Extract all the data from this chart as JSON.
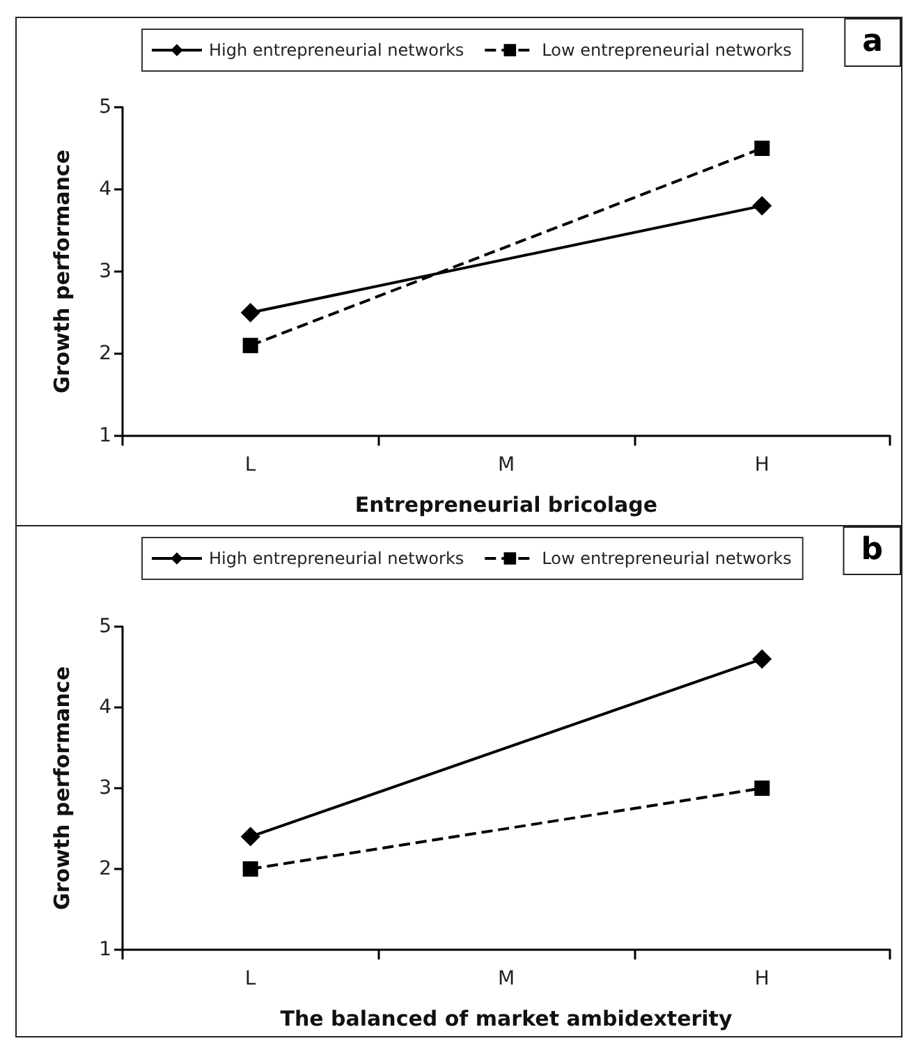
{
  "chart_data": [
    {
      "type": "line",
      "xlabel": "Entrepreneurial bricolage",
      "ylabel": "Growth performance",
      "annotations": [
        "a"
      ],
      "categories": [
        "L",
        "M",
        "H"
      ],
      "series": [
        {
          "name": "High entrepreneurial networks",
          "color": "#000000",
          "values": [
            2.5,
            null,
            3.8
          ],
          "marker": "diamond",
          "line_style": "solid"
        },
        {
          "name": "Low entrepreneurial networks",
          "color": "#000000",
          "values": [
            2.1,
            null,
            4.5
          ],
          "marker": "square",
          "line_style": "dashed"
        }
      ],
      "ylim": [
        1,
        5
      ],
      "yticks": [
        1,
        2,
        3,
        4,
        5
      ],
      "grid": false,
      "legend": "top"
    },
    {
      "type": "line",
      "xlabel": "The balanced of market ambidexterity",
      "ylabel": "Growth performance",
      "annotations": [
        "b"
      ],
      "categories": [
        "L",
        "M",
        "H"
      ],
      "series": [
        {
          "name": "High entrepreneurial networks",
          "color": "#000000",
          "values": [
            2.4,
            null,
            4.6
          ],
          "marker": "diamond",
          "line_style": "solid"
        },
        {
          "name": "Low entrepreneurial networks",
          "color": "#000000",
          "values": [
            2.0,
            null,
            3.0
          ],
          "marker": "square",
          "line_style": "dashed"
        }
      ],
      "ylim": [
        1,
        5
      ],
      "yticks": [
        1,
        2,
        3,
        4,
        5
      ],
      "grid": false,
      "legend": "top"
    }
  ]
}
